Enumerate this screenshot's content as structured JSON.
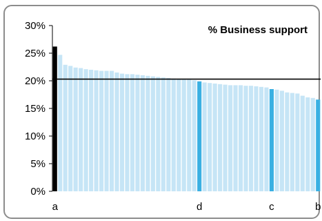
{
  "chart_data": {
    "type": "bar",
    "title": "% Business support",
    "xlabel": "",
    "ylabel": "",
    "ylim": [
      0,
      30
    ],
    "yticks": [
      "0%",
      "5%",
      "10%",
      "15%",
      "20%",
      "25%",
      "30%"
    ],
    "ytick_values": [
      0,
      5,
      10,
      15,
      20,
      25,
      30
    ],
    "grid": false,
    "reference_line": 20.3,
    "category_labels": [
      {
        "index": 0,
        "label": "a"
      },
      {
        "index": 28,
        "label": "d"
      },
      {
        "index": 42,
        "label": "c"
      },
      {
        "index": 51,
        "label": "b"
      }
    ],
    "values": [
      26.2,
      24.7,
      22.9,
      22.7,
      22.4,
      22.3,
      22.1,
      22.0,
      21.9,
      21.8,
      21.8,
      21.8,
      21.5,
      21.3,
      21.2,
      21.2,
      21.1,
      21.0,
      20.9,
      20.8,
      20.7,
      20.6,
      20.5,
      20.4,
      20.3,
      20.2,
      20.2,
      20.1,
      19.9,
      19.7,
      19.6,
      19.5,
      19.4,
      19.3,
      19.2,
      19.2,
      19.2,
      19.1,
      19.1,
      19.0,
      18.9,
      18.8,
      18.5,
      18.4,
      18.2,
      17.9,
      17.8,
      17.7,
      17.3,
      17.0,
      16.9,
      16.6
    ],
    "highlight_indices": {
      "0": "#000000",
      "28": "#3ab0e2",
      "42": "#3ab0e2",
      "51": "#3ab0e2"
    },
    "colors": {
      "bar": "#c6e5f6",
      "highlight_black": "#000000",
      "highlight_blue": "#3ab0e2",
      "reference_line": "#000000",
      "axis": "#000000",
      "frame": "#8c8c8c"
    }
  }
}
